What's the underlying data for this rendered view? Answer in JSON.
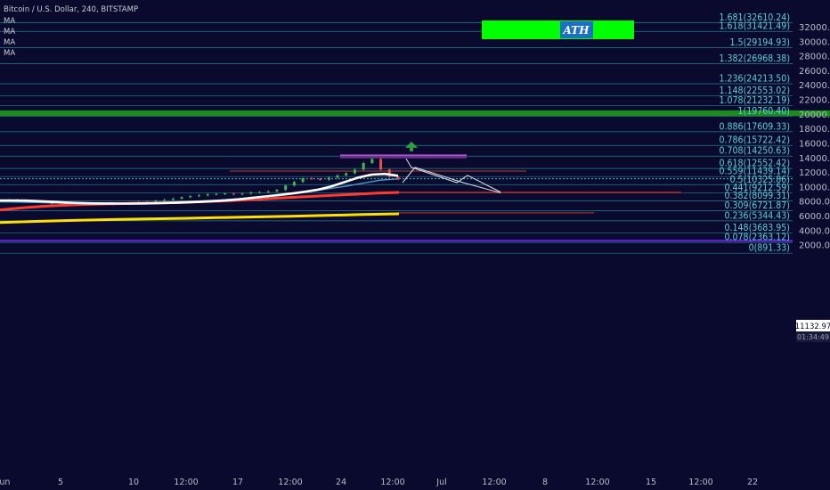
{
  "header": {
    "symbol": "Bitcoin / U.S. Dollar, 240, BITSTAMP",
    "indicators": [
      "MA",
      "MA",
      "MA",
      "MA"
    ]
  },
  "badges": {
    "price": "11132.97",
    "countdown": "01:34:49"
  },
  "annotations": {
    "ath_label": "ATH"
  },
  "colors": {
    "background": "#0a0a2e",
    "fib_line": "#2aa7b8",
    "fib_text": "#5ad1dc",
    "green_zone": "#1e8a1e",
    "ath_box": "#00ff00",
    "purple_zone": "#5b1fcc",
    "ma_white": "#ffffff",
    "ma_red": "#ff3b30",
    "ma_yellow": "#ffe000",
    "ma_blue": "#4fa3d1"
  },
  "chart_data": {
    "type": "line",
    "title": "Bitcoin / U.S. Dollar, 240, BITSTAMP",
    "ylim": [
      1000,
      33500
    ],
    "y_scale": "linear",
    "y_ticks": [
      2000,
      4000,
      6000,
      8000,
      10000,
      12000,
      14000,
      16000,
      18000,
      20000,
      22000,
      24000,
      26000,
      28000,
      30000,
      32000
    ],
    "y_tick_labels": [
      "2000.00",
      "4000.00",
      "6000.00",
      "8000.00",
      "10000.00",
      "12000.00",
      "14000.00",
      "16000.00",
      "18000.00",
      "20000.00",
      "22000.00",
      "24000.00",
      "26000.00",
      "28000.00",
      "30000.00",
      "32000.00"
    ],
    "x_tick_labels": [
      "Jun",
      "5",
      "10",
      "12:00",
      "17",
      "12:00",
      "24",
      "12:00",
      "Jul",
      "12:00",
      "8",
      "12:00",
      "15",
      "12:00",
      "22"
    ],
    "fib_levels": [
      {
        "ratio": "1.681",
        "price": 32610.24
      },
      {
        "ratio": "1.618",
        "price": 31421.49
      },
      {
        "ratio": "1.5",
        "price": 29194.93
      },
      {
        "ratio": "1.382",
        "price": 26968.38
      },
      {
        "ratio": "1.236",
        "price": 24213.5
      },
      {
        "ratio": "1.148",
        "price": 22553.02
      },
      {
        "ratio": "1.078",
        "price": 21232.19
      },
      {
        "ratio": "1",
        "price": 19760.4
      },
      {
        "ratio": "0.886",
        "price": 17609.33
      },
      {
        "ratio": "0.786",
        "price": 15722.42
      },
      {
        "ratio": "0.708",
        "price": 14250.63
      },
      {
        "ratio": "0.618",
        "price": 12552.42
      },
      {
        "ratio": "0.559",
        "price": 11439.14
      },
      {
        "ratio": "0.5",
        "price": 10325.86
      },
      {
        "ratio": "0.441",
        "price": 9212.59
      },
      {
        "ratio": "0.382",
        "price": 8099.31
      },
      {
        "ratio": "0.309",
        "price": 6721.87
      },
      {
        "ratio": "0.236",
        "price": 5344.43
      },
      {
        "ratio": "0.148",
        "price": 3683.95
      },
      {
        "ratio": "0.078",
        "price": 2363.12
      },
      {
        "ratio": "0",
        "price": 891.33
      }
    ],
    "zones": {
      "green_resistance": [
        19750,
        20550
      ],
      "ath_box": [
        31150,
        32550
      ],
      "purple_support": [
        2450,
        2750
      ]
    },
    "series": [
      {
        "kind": "price",
        "values": [
          8150,
          8200,
          8100,
          8050,
          7950,
          7900,
          7650,
          7600,
          7700,
          7650,
          7600,
          7700,
          7650,
          7700,
          7750,
          7800,
          7900,
          7950,
          8100,
          8250,
          8400,
          8600,
          8750,
          8850,
          9000,
          9050,
          9100,
          9000,
          9100,
          9250,
          9300,
          9400,
          9600,
          10200,
          10700,
          11200,
          11100,
          11000,
          11300,
          11600,
          11900,
          12400,
          13300,
          13850,
          12400,
          11400,
          11050
        ]
      },
      {
        "kind": "ma_white",
        "values": [
          8150,
          8150,
          8120,
          8050,
          7950,
          7850,
          7800,
          7750,
          7730,
          7720,
          7720,
          7740,
          7780,
          7820,
          7880,
          7950,
          8050,
          8150,
          8300,
          8500,
          8700,
          8900,
          9100,
          9350,
          9650,
          10100,
          10700,
          11300,
          11700,
          11800,
          11550
        ]
      },
      {
        "kind": "ma_blue",
        "values": [
          7950,
          7930,
          7880,
          7820,
          7770,
          7740,
          7730,
          7740,
          7770,
          7820,
          7880,
          7960,
          8060,
          8180,
          8330,
          8500,
          8700,
          8920,
          9180,
          9480,
          9800,
          10150,
          10550,
          10950,
          11100
        ]
      },
      {
        "kind": "ma_red",
        "values": [
          6850,
          7150,
          7350,
          7500,
          7610,
          7680,
          7740,
          7800,
          7870,
          7960,
          8070,
          8210,
          8380,
          8550,
          8700,
          8850,
          9000,
          9150,
          9250
        ]
      },
      {
        "kind": "ma_yellow",
        "values": [
          5120,
          5270,
          5400,
          5510,
          5600,
          5690,
          5780,
          5880,
          5980,
          6090,
          6210,
          6310
        ]
      },
      {
        "kind": "projection_path",
        "values": [
          10600,
          12700,
          10600,
          9200
        ]
      },
      {
        "kind": "projection_path_2",
        "values": [
          13900,
          12700,
          10600,
          11600,
          9300
        ]
      },
      {
        "kind": "horizontal_levels",
        "values": [
          14350,
          14050,
          12200,
          9250,
          6450
        ]
      },
      {
        "kind": "target_arrow",
        "values": [
          15400
        ]
      }
    ]
  }
}
